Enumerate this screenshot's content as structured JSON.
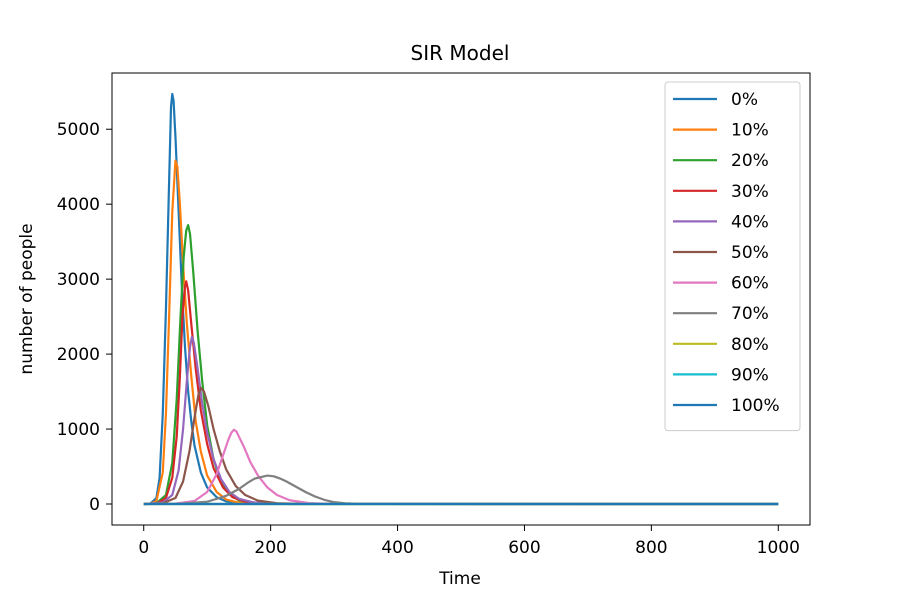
{
  "chart_data": {
    "type": "line",
    "title": "SIR Model",
    "xlabel": "Time",
    "ylabel": "number of people",
    "xlim": [
      -50,
      1050
    ],
    "ylim": [
      -280,
      5750
    ],
    "xticks": [
      0,
      200,
      400,
      600,
      800,
      1000
    ],
    "yticks": [
      0,
      1000,
      2000,
      3000,
      4000,
      5000
    ],
    "grid": false,
    "legend_position": "top-right",
    "series": [
      {
        "name": "0%",
        "color": "#1f77b4",
        "points": [
          [
            0,
            0
          ],
          [
            10,
            3
          ],
          [
            20,
            80
          ],
          [
            25,
            350
          ],
          [
            30,
            1200
          ],
          [
            35,
            2600
          ],
          [
            40,
            4300
          ],
          [
            43,
            5300
          ],
          [
            45,
            5470
          ],
          [
            47,
            5380
          ],
          [
            50,
            4900
          ],
          [
            55,
            3900
          ],
          [
            60,
            2900
          ],
          [
            65,
            2100
          ],
          [
            70,
            1500
          ],
          [
            75,
            1100
          ],
          [
            80,
            780
          ],
          [
            90,
            420
          ],
          [
            100,
            220
          ],
          [
            115,
            90
          ],
          [
            130,
            35
          ],
          [
            150,
            10
          ],
          [
            200,
            1
          ],
          [
            1000,
            0
          ]
        ]
      },
      {
        "name": "10%",
        "color": "#ff7f0e",
        "points": [
          [
            0,
            0
          ],
          [
            10,
            2
          ],
          [
            20,
            40
          ],
          [
            30,
            420
          ],
          [
            35,
            1200
          ],
          [
            40,
            2500
          ],
          [
            45,
            3900
          ],
          [
            50,
            4580
          ],
          [
            53,
            4500
          ],
          [
            57,
            4000
          ],
          [
            62,
            3200
          ],
          [
            68,
            2400
          ],
          [
            75,
            1700
          ],
          [
            82,
            1100
          ],
          [
            90,
            700
          ],
          [
            100,
            380
          ],
          [
            115,
            160
          ],
          [
            130,
            60
          ],
          [
            150,
            18
          ],
          [
            200,
            1
          ],
          [
            1000,
            0
          ]
        ]
      },
      {
        "name": "20%",
        "color": "#2ca02c",
        "points": [
          [
            0,
            0
          ],
          [
            20,
            10
          ],
          [
            35,
            120
          ],
          [
            45,
            550
          ],
          [
            52,
            1400
          ],
          [
            58,
            2500
          ],
          [
            63,
            3300
          ],
          [
            67,
            3650
          ],
          [
            70,
            3720
          ],
          [
            73,
            3600
          ],
          [
            78,
            3100
          ],
          [
            85,
            2300
          ],
          [
            92,
            1650
          ],
          [
            100,
            1050
          ],
          [
            110,
            600
          ],
          [
            120,
            330
          ],
          [
            135,
            130
          ],
          [
            150,
            50
          ],
          [
            180,
            8
          ],
          [
            230,
            0
          ],
          [
            1000,
            0
          ]
        ]
      },
      {
        "name": "30%",
        "color": "#d62728",
        "points": [
          [
            0,
            0
          ],
          [
            20,
            5
          ],
          [
            35,
            80
          ],
          [
            45,
            350
          ],
          [
            52,
            900
          ],
          [
            57,
            1700
          ],
          [
            61,
            2500
          ],
          [
            65,
            2900
          ],
          [
            67,
            2970
          ],
          [
            70,
            2850
          ],
          [
            75,
            2400
          ],
          [
            82,
            1800
          ],
          [
            90,
            1250
          ],
          [
            100,
            800
          ],
          [
            110,
            480
          ],
          [
            125,
            220
          ],
          [
            140,
            90
          ],
          [
            160,
            30
          ],
          [
            200,
            3
          ],
          [
            1000,
            0
          ]
        ]
      },
      {
        "name": "40%",
        "color": "#9467bd",
        "points": [
          [
            0,
            0
          ],
          [
            30,
            20
          ],
          [
            45,
            120
          ],
          [
            55,
            450
          ],
          [
            62,
            1000
          ],
          [
            68,
            1650
          ],
          [
            73,
            2100
          ],
          [
            76,
            2230
          ],
          [
            79,
            2150
          ],
          [
            85,
            1800
          ],
          [
            92,
            1350
          ],
          [
            100,
            950
          ],
          [
            110,
            600
          ],
          [
            122,
            330
          ],
          [
            135,
            160
          ],
          [
            150,
            70
          ],
          [
            175,
            18
          ],
          [
            220,
            2
          ],
          [
            1000,
            0
          ]
        ]
      },
      {
        "name": "50%",
        "color": "#8c564b",
        "points": [
          [
            0,
            0
          ],
          [
            30,
            10
          ],
          [
            50,
            80
          ],
          [
            62,
            300
          ],
          [
            72,
            700
          ],
          [
            80,
            1150
          ],
          [
            86,
            1450
          ],
          [
            90,
            1550
          ],
          [
            95,
            1500
          ],
          [
            102,
            1300
          ],
          [
            110,
            1000
          ],
          [
            120,
            700
          ],
          [
            130,
            460
          ],
          [
            145,
            240
          ],
          [
            160,
            120
          ],
          [
            180,
            45
          ],
          [
            210,
            10
          ],
          [
            260,
            1
          ],
          [
            1000,
            0
          ]
        ]
      },
      {
        "name": "60%",
        "color": "#e377c2",
        "points": [
          [
            0,
            0
          ],
          [
            50,
            5
          ],
          [
            80,
            40
          ],
          [
            100,
            160
          ],
          [
            115,
            400
          ],
          [
            125,
            650
          ],
          [
            133,
            850
          ],
          [
            138,
            950
          ],
          [
            142,
            990
          ],
          [
            146,
            970
          ],
          [
            150,
            900
          ],
          [
            158,
            760
          ],
          [
            168,
            560
          ],
          [
            180,
            380
          ],
          [
            195,
            220
          ],
          [
            210,
            120
          ],
          [
            230,
            50
          ],
          [
            260,
            12
          ],
          [
            300,
            1
          ],
          [
            1000,
            0
          ]
        ]
      },
      {
        "name": "70%",
        "color": "#7f7f7f",
        "points": [
          [
            0,
            0
          ],
          [
            60,
            5
          ],
          [
            100,
            30
          ],
          [
            130,
            110
          ],
          [
            150,
            200
          ],
          [
            165,
            290
          ],
          [
            175,
            340
          ],
          [
            185,
            360
          ],
          [
            195,
            380
          ],
          [
            205,
            370
          ],
          [
            215,
            340
          ],
          [
            225,
            300
          ],
          [
            240,
            230
          ],
          [
            255,
            160
          ],
          [
            270,
            100
          ],
          [
            285,
            55
          ],
          [
            300,
            25
          ],
          [
            320,
            8
          ],
          [
            350,
            1
          ],
          [
            1000,
            0
          ]
        ]
      },
      {
        "name": "80%",
        "color": "#bcbd22",
        "points": [
          [
            0,
            0
          ],
          [
            1000,
            0
          ]
        ]
      },
      {
        "name": "90%",
        "color": "#17becf",
        "points": [
          [
            0,
            0
          ],
          [
            1000,
            0
          ]
        ]
      },
      {
        "name": "100%",
        "color": "#1f77b4",
        "points": [
          [
            0,
            0
          ],
          [
            1000,
            0
          ]
        ]
      }
    ]
  }
}
